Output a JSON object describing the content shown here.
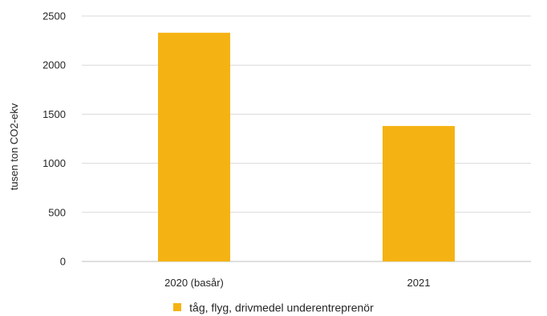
{
  "chart_data": {
    "type": "bar",
    "categories": [
      "2020 (basår)",
      "2021"
    ],
    "series": [
      {
        "name": "tåg, flyg, drivmedel underentreprenör",
        "values": [
          2330,
          1380
        ],
        "color": "#F5B313"
      }
    ],
    "ylabel": "tusen ton CO2-ekv",
    "xlabel": "",
    "ylim": [
      0,
      2500
    ],
    "yticks": [
      0,
      500,
      1000,
      1500,
      2000,
      2500
    ],
    "grid": true,
    "legend_position": "bottom"
  }
}
